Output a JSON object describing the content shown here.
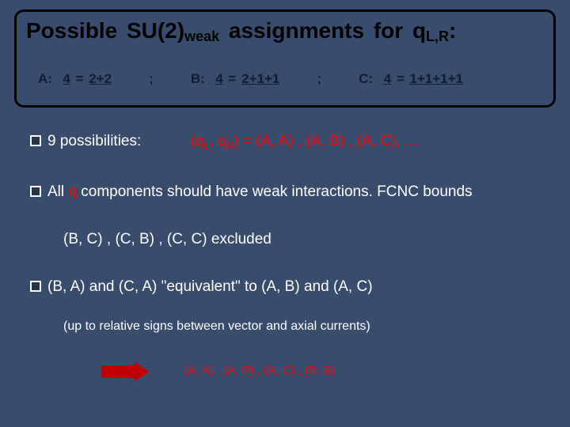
{
  "colors": {
    "background": "#384c6e",
    "title_text": "#000000",
    "border": "#000000",
    "body_text": "#ffffff",
    "highlight": "#ff0000",
    "arrow": "#c00000",
    "option_text": "#0f1c33"
  },
  "title": {
    "pre": "Possible  SU(2)",
    "sub": "weak",
    "post": "  assignments  for  q",
    "sub2": "L,R",
    "end": ":"
  },
  "options": {
    "a_label": "A:",
    "a_lhs": "4",
    "a_eq": " = ",
    "a_rhs": "2+2",
    "sep1": ";",
    "b_label": "B:",
    "b_lhs": "4",
    "b_eq": " = ",
    "b_rhs": "2+1+1",
    "sep2": ";",
    "c_label": "C:",
    "c_lhs": "4",
    "c_eq": " = ",
    "c_rhs": "1+1+1+1"
  },
  "bullet1": {
    "text": "9  possibilities:",
    "pairs_pre": "(q",
    "pairs_sub1": "L",
    "pairs_mid": ", q",
    "pairs_sub2": "R",
    "pairs_post": ")  =  (A, A) , (A, B) , (A, C), …"
  },
  "bullet2": {
    "pre": "All ",
    "q": "q",
    "post": " components should have weak interactions.   FCNC  bounds"
  },
  "excluded": "(B, C)  ,  (C, B)  ,  (C, C)     excluded",
  "bullet3": "(B, A)  and  (C, A)   \"equivalent\"  to  (A, B)  and  (A, C)",
  "sub_note": "(up to relative signs between vector and axial currents)",
  "final": "(A, A)  ,  (A, B)  ,  (A, C)  ,  (B, B)"
}
